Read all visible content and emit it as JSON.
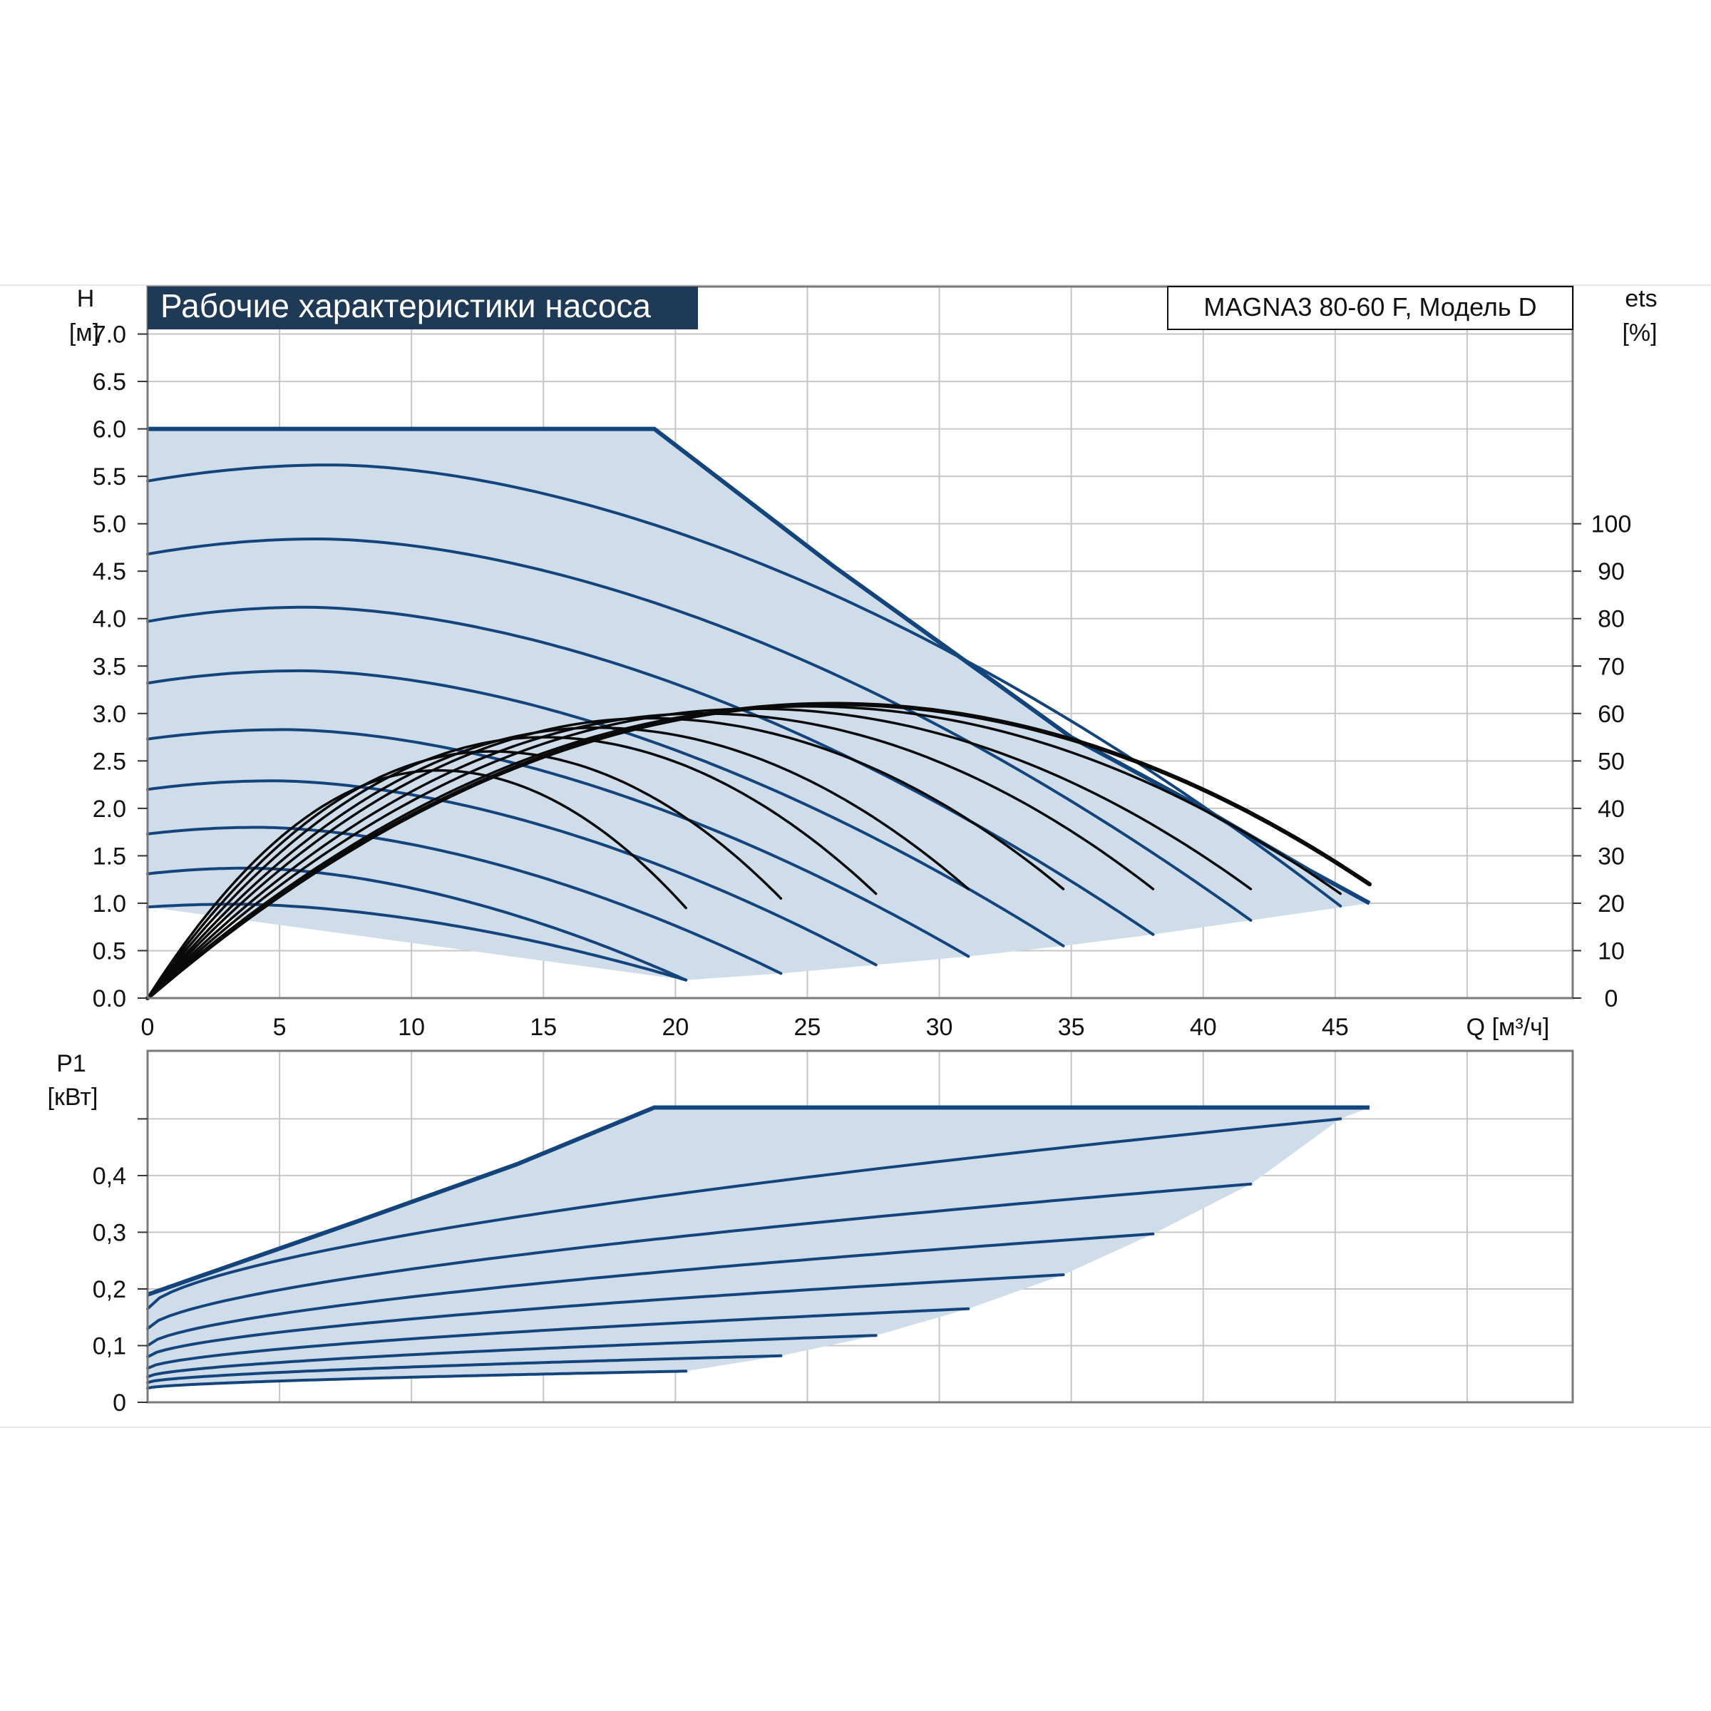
{
  "colors": {
    "accent": "#13457c",
    "fill": "#cfdcea",
    "grid": "#c6c6c6",
    "frame": "#7a7a7a",
    "efficiency": "#0a0a0a",
    "title_bg": "#1f3a57",
    "title_text": "#ffffff"
  },
  "chart_data": [
    {
      "type": "line",
      "title": "Рабочие характеристики насоса",
      "model_label": "MAGNA3 80-60 F, Модель D",
      "ylabel": "H",
      "ylabel_unit": "[м]",
      "y2label": "ets",
      "y2label_unit": "[%]",
      "xlabel": "Q [м³/ч]",
      "xlim": [
        0,
        54
      ],
      "ylim": [
        0,
        7.5
      ],
      "y2lim": [
        0,
        100
      ],
      "grid": true,
      "x_ticks": [
        "0",
        "5",
        "10",
        "15",
        "20",
        "25",
        "30",
        "35",
        "40",
        "45"
      ],
      "y_ticks": [
        "0.0",
        "0.5",
        "1.0",
        "1.5",
        "2.0",
        "2.5",
        "3.0",
        "3.5",
        "4.0",
        "4.5",
        "5.0",
        "5.5",
        "6.0",
        "6.5",
        "7.0"
      ],
      "y2_ticks": [
        "0",
        "10",
        "20",
        "30",
        "40",
        "50",
        "60",
        "70",
        "80",
        "90",
        "100"
      ],
      "max_curve": {
        "name": "max",
        "points": [
          [
            0,
            6.0
          ],
          [
            19.2,
            6.0
          ],
          [
            26,
            4.55
          ],
          [
            31,
            3.55
          ],
          [
            35,
            2.75
          ],
          [
            40,
            2.0
          ],
          [
            44,
            1.35
          ],
          [
            46.3,
            1.0
          ]
        ]
      },
      "head_curves": [
        {
          "h0": 5.45,
          "hmax": 5.62,
          "qpeak": 7,
          "qend": 45.2,
          "hend": 0.97
        },
        {
          "h0": 4.68,
          "hmax": 4.84,
          "qpeak": 6.5,
          "qend": 41.8,
          "hend": 0.82
        },
        {
          "h0": 3.97,
          "hmax": 4.12,
          "qpeak": 6,
          "qend": 38.1,
          "hend": 0.67
        },
        {
          "h0": 3.32,
          "hmax": 3.45,
          "qpeak": 5.8,
          "qend": 34.7,
          "hend": 0.55
        },
        {
          "h0": 2.73,
          "hmax": 2.83,
          "qpeak": 5.2,
          "qend": 31.1,
          "hend": 0.44
        },
        {
          "h0": 2.2,
          "hmax": 2.29,
          "qpeak": 4.8,
          "qend": 27.6,
          "hend": 0.35
        },
        {
          "h0": 1.73,
          "hmax": 1.8,
          "qpeak": 4.2,
          "qend": 24.0,
          "hend": 0.26
        },
        {
          "h0": 1.31,
          "hmax": 1.37,
          "qpeak": 3.8,
          "qend": 20.4,
          "hend": 0.19
        },
        {
          "h0": 0.96,
          "hmax": 0.99,
          "qpeak": 3.3,
          "qend": 20.4,
          "hend": 0.19
        }
      ],
      "min_boundary": [
        [
          20.4,
          0.19
        ],
        [
          24.0,
          0.26
        ],
        [
          27.6,
          0.35
        ],
        [
          31.1,
          0.44
        ],
        [
          34.7,
          0.55
        ],
        [
          38.1,
          0.67
        ],
        [
          41.8,
          0.82
        ],
        [
          46.3,
          1.0
        ]
      ],
      "efficiency_curves": [
        {
          "qend": 20.4,
          "eta_end": 19,
          "eta_max": 48,
          "q_at_max": 11
        },
        {
          "qend": 24.0,
          "eta_end": 21,
          "eta_max": 52,
          "q_at_max": 13
        },
        {
          "qend": 27.6,
          "eta_end": 22,
          "eta_max": 55,
          "q_at_max": 15
        },
        {
          "qend": 31.1,
          "eta_end": 23,
          "eta_max": 57,
          "q_at_max": 17
        },
        {
          "qend": 34.7,
          "eta_end": 23,
          "eta_max": 59,
          "q_at_max": 19
        },
        {
          "qend": 38.1,
          "eta_end": 23,
          "eta_max": 60,
          "q_at_max": 21
        },
        {
          "qend": 41.8,
          "eta_end": 23,
          "eta_max": 61,
          "q_at_max": 23
        },
        {
          "qend": 45.2,
          "eta_end": 22,
          "eta_max": 61.5,
          "q_at_max": 25
        },
        {
          "qend": 46.3,
          "eta_end": 24,
          "eta_max": 62,
          "q_at_max": 26
        }
      ]
    },
    {
      "type": "line",
      "ylabel": "P1",
      "ylabel_unit": "[кВт]",
      "xlim": [
        0,
        54
      ],
      "ylim": [
        0,
        0.62
      ],
      "grid": true,
      "y_ticks": [
        "0",
        "0,1",
        "0,2",
        "0,3",
        "0,4"
      ],
      "max_curve": {
        "name": "max",
        "points": [
          [
            0,
            0.19
          ],
          [
            8,
            0.32
          ],
          [
            14,
            0.42
          ],
          [
            19.2,
            0.52
          ],
          [
            46.3,
            0.52
          ]
        ]
      },
      "power_curves": [
        {
          "p0": 0.165,
          "pend": 0.5,
          "qend": 45.2
        },
        {
          "p0": 0.13,
          "pend": 0.385,
          "qend": 41.8
        },
        {
          "p0": 0.1,
          "pend": 0.297,
          "qend": 38.1
        },
        {
          "p0": 0.08,
          "pend": 0.225,
          "qend": 34.7
        },
        {
          "p0": 0.06,
          "pend": 0.165,
          "qend": 31.1
        },
        {
          "p0": 0.045,
          "pend": 0.118,
          "qend": 27.6
        },
        {
          "p0": 0.035,
          "pend": 0.082,
          "qend": 24.0
        },
        {
          "p0": 0.025,
          "pend": 0.055,
          "qend": 20.4
        }
      ]
    }
  ]
}
